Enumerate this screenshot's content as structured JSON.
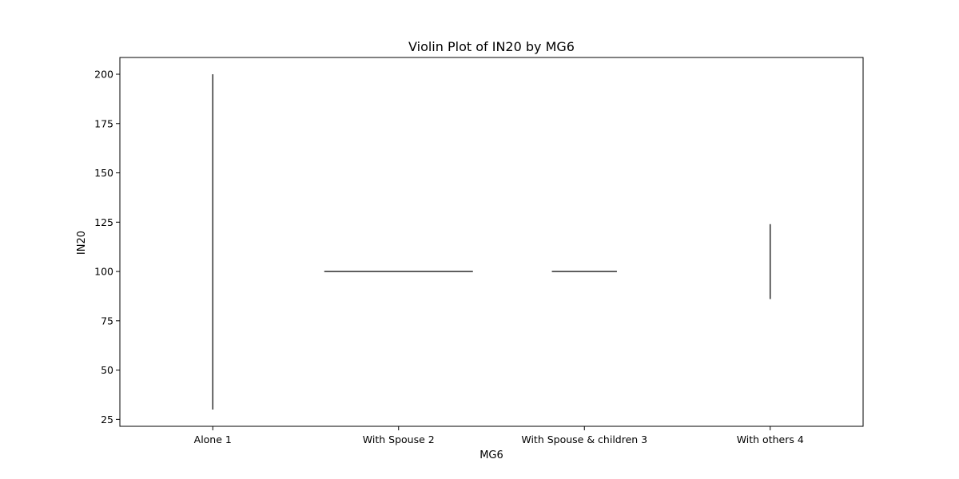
{
  "chart_data": {
    "type": "violin",
    "title": "Violin Plot of IN20 by MG6",
    "xlabel": "MG6",
    "ylabel": "IN20",
    "categories": [
      "Alone 1",
      "With Spouse 2",
      "With Spouse & children 3",
      "With others 4"
    ],
    "yticks": [
      25,
      50,
      75,
      100,
      125,
      150,
      175,
      200
    ],
    "ylim": [
      21.5,
      208.5
    ],
    "grid": false,
    "violins": [
      {
        "category": "Alone 1",
        "shape": "vertical-line",
        "min": 30,
        "max": 200
      },
      {
        "category": "With Spouse 2",
        "shape": "horizontal-line",
        "value": 100,
        "width_fraction": 0.8
      },
      {
        "category": "With Spouse & children 3",
        "shape": "horizontal-line",
        "value": 100,
        "width_fraction": 0.35
      },
      {
        "category": "With others 4",
        "shape": "vertical-line",
        "min": 86,
        "max": 124
      }
    ],
    "colors": {
      "marks": "#3b3b3b",
      "axes": "#000000",
      "background": "#ffffff"
    }
  }
}
